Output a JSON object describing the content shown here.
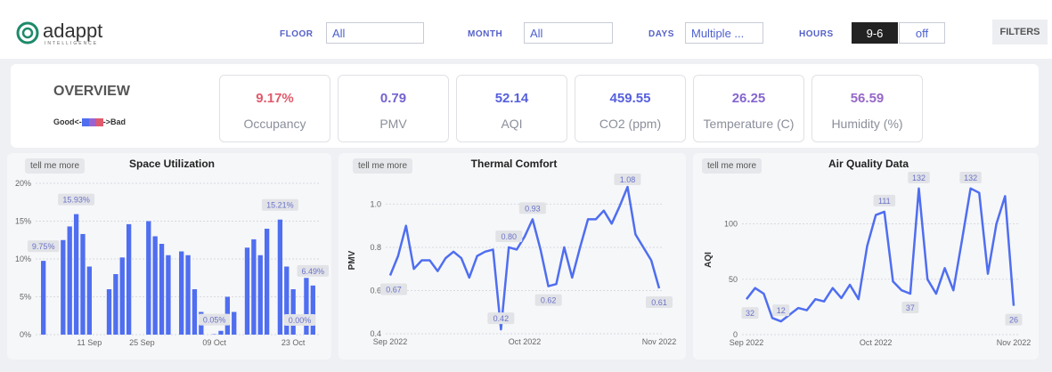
{
  "header": {
    "logo": "adappt",
    "logo_sub": "INTELLIGENCE",
    "filters": [
      {
        "label": "FLOOR",
        "value": "All"
      },
      {
        "label": "MONTH",
        "value": "All"
      },
      {
        "label": "DAYS",
        "value": "Multiple ..."
      }
    ],
    "hours": {
      "label": "HOURS",
      "options": [
        "9-6",
        "off"
      ]
    },
    "button": "FILTERS"
  },
  "overview": {
    "title": "OVERVIEW",
    "legend_good": "Good<-",
    "legend_bad": "->Bad",
    "kpis": [
      {
        "value": "9.17%",
        "label": "Occupancy",
        "color": "#e05a6c"
      },
      {
        "value": "0.79",
        "label": "PMV",
        "color": "#7462cf"
      },
      {
        "value": "52.14",
        "label": "AQI",
        "color": "#5660de"
      },
      {
        "value": "459.55",
        "label": "CO2 (ppm)",
        "color": "#5660de"
      },
      {
        "value": "26.25",
        "label": "Temperature (C)",
        "color": "#8566cf"
      },
      {
        "value": "56.59",
        "label": "Humidity (%)",
        "color": "#9668c8"
      }
    ]
  },
  "chart_data": [
    {
      "type": "bar",
      "title": "Space Utilization",
      "button": "tell me more",
      "color": "#4f6ef0",
      "grid": true,
      "categories": [
        null,
        null,
        null,
        null,
        null,
        null,
        null,
        "11 Sep",
        null,
        null,
        null,
        null,
        null,
        null,
        null,
        "25 Sep",
        null,
        null,
        null,
        null,
        null,
        null,
        null,
        null,
        null,
        null,
        "09 Oct",
        null,
        null,
        null,
        null,
        null,
        null,
        null,
        null,
        null,
        null,
        null,
        "23 Oct",
        null,
        null,
        null
      ],
      "values": [
        9.75,
        null,
        null,
        12.5,
        14.3,
        15.93,
        13.3,
        9.0,
        null,
        null,
        6.0,
        8.0,
        10.2,
        14.6,
        null,
        null,
        15.0,
        13.0,
        12.0,
        10.5,
        null,
        11.0,
        10.5,
        6.0,
        3.0,
        null,
        0.05,
        0.5,
        5.0,
        3.0,
        null,
        11.5,
        12.6,
        10.5,
        14.0,
        null,
        15.21,
        9.0,
        6.0,
        0.0,
        7.5,
        6.49
      ],
      "value_labels": [
        "9.75%",
        null,
        null,
        null,
        null,
        "15.93%",
        null,
        null,
        null,
        null,
        null,
        null,
        null,
        null,
        null,
        null,
        null,
        null,
        null,
        null,
        null,
        null,
        null,
        null,
        null,
        null,
        "0.05%",
        null,
        null,
        null,
        null,
        null,
        null,
        null,
        null,
        null,
        "15.21%",
        null,
        null,
        "0.00%",
        null,
        "6.49%"
      ],
      "ylim": [
        0,
        20
      ],
      "yticks": [
        {
          "value": 0,
          "label": "0%"
        },
        {
          "value": 5,
          "label": "5%"
        },
        {
          "value": 10,
          "label": "10%"
        },
        {
          "value": 15,
          "label": "15%"
        },
        {
          "value": 20,
          "label": "20%"
        }
      ]
    },
    {
      "type": "line",
      "title": "Thermal Comfort",
      "button": "tell me more",
      "y_label": "PMV",
      "color": "#4f6ef0",
      "grid": true,
      "categories": [
        "Sep 2022",
        null,
        null,
        null,
        null,
        null,
        null,
        null,
        null,
        null,
        null,
        null,
        null,
        null,
        null,
        null,
        null,
        "Oct 2022",
        null,
        null,
        null,
        null,
        null,
        null,
        null,
        null,
        null,
        null,
        null,
        null,
        null,
        null,
        null,
        null,
        "Nov 2022"
      ],
      "values": [
        0.67,
        0.76,
        0.9,
        0.7,
        0.74,
        0.74,
        0.69,
        0.75,
        0.78,
        0.75,
        0.66,
        0.76,
        0.78,
        0.79,
        0.42,
        0.8,
        0.79,
        0.85,
        0.93,
        0.79,
        0.62,
        0.63,
        0.8,
        0.66,
        0.8,
        0.93,
        0.93,
        0.97,
        0.91,
        0.99,
        1.08,
        0.86,
        0.8,
        0.74,
        0.61
      ],
      "value_labels": [
        "0.67",
        null,
        null,
        null,
        null,
        null,
        null,
        null,
        null,
        null,
        null,
        null,
        null,
        null,
        "0.42",
        "0.80",
        null,
        null,
        "0.93",
        null,
        "0.62",
        null,
        null,
        null,
        null,
        null,
        null,
        null,
        null,
        null,
        "1.08",
        null,
        null,
        null,
        "0.61"
      ],
      "ylim": [
        0.4,
        1.08
      ],
      "yticks": [
        0.4,
        0.6,
        0.8,
        {
          "value": 1,
          "label": "1.0"
        }
      ]
    },
    {
      "type": "line",
      "title": "Air Quality Data",
      "button": "tell me more",
      "y_label": "AQI",
      "color": "#4f6ef0",
      "grid": true,
      "categories": [
        "Sep 2022",
        null,
        null,
        null,
        null,
        null,
        null,
        null,
        null,
        null,
        null,
        null,
        null,
        null,
        null,
        "Oct 2022",
        null,
        null,
        null,
        null,
        null,
        null,
        null,
        null,
        null,
        null,
        null,
        null,
        null,
        null,
        null,
        "Nov 2022"
      ],
      "values": [
        32,
        42,
        37,
        15,
        12,
        18,
        24,
        22,
        32,
        30,
        42,
        33,
        45,
        32,
        80,
        108,
        111,
        48,
        40,
        37,
        132,
        50,
        37,
        60,
        40,
        85,
        132,
        128,
        55,
        100,
        125,
        26
      ],
      "value_labels": [
        "32",
        null,
        null,
        null,
        "12",
        null,
        null,
        null,
        null,
        null,
        null,
        null,
        null,
        null,
        null,
        null,
        "111",
        null,
        null,
        "37",
        "132",
        null,
        null,
        null,
        null,
        null,
        "132",
        null,
        null,
        null,
        null,
        "26"
      ],
      "ylim": [
        0,
        135
      ],
      "yticks": [
        0,
        50,
        100
      ]
    }
  ]
}
